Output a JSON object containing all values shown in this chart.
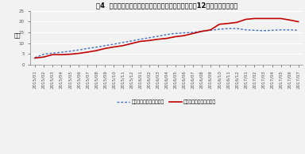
{
  "title": "図4  リサイクル中業種における月別出店数･退店数の12ヶ月移動平均推移",
  "ylabel": "店数",
  "ylim": [
    0,
    25
  ],
  "yticks": [
    0,
    5,
    10,
    15,
    20,
    25
  ],
  "labels": [
    "2015/01",
    "2015/02",
    "2015/03",
    "2015/04",
    "2015/05",
    "2015/06",
    "2015/07",
    "2015/08",
    "2015/09",
    "2015/10",
    "2015/11",
    "2015/12",
    "2016/01",
    "2016/02",
    "2016/03",
    "2016/04",
    "2016/05",
    "2016/06",
    "2016/07",
    "2016/08",
    "2016/09",
    "2016/10",
    "2016/11",
    "2016/12",
    "2017/01",
    "2017/02",
    "2017/03",
    "2017/04",
    "2017/05",
    "2017/06",
    "2017/07"
  ],
  "open_stores": [
    3.2,
    4.8,
    5.3,
    5.7,
    6.2,
    6.8,
    7.5,
    8.1,
    8.8,
    9.5,
    10.3,
    11.0,
    11.8,
    12.5,
    13.2,
    14.0,
    14.5,
    14.8,
    15.0,
    15.5,
    16.0,
    16.5,
    16.8,
    16.8,
    16.2,
    16.0,
    15.8,
    16.0,
    16.2,
    16.2,
    16.0
  ],
  "close_stores": [
    3.0,
    3.5,
    4.6,
    4.6,
    4.8,
    5.2,
    5.8,
    6.5,
    7.5,
    8.2,
    8.8,
    9.8,
    10.8,
    11.2,
    11.8,
    12.2,
    13.0,
    13.5,
    14.5,
    15.5,
    16.2,
    18.8,
    19.2,
    19.7,
    21.1,
    21.5,
    21.5,
    21.5,
    21.5,
    20.8,
    20.0
  ],
  "open_color": "#4472C4",
  "close_color": "#C00000",
  "legend_open": "リサイクル中業種出店数",
  "legend_close": "リサイクル中業種退店数",
  "bg_color": "#F2F2F2",
  "plot_bg": "#F2F2F2",
  "grid_color": "#FFFFFF",
  "title_fontsize": 6.0,
  "tick_fontsize": 4.0,
  "ylabel_fontsize": 5.0,
  "legend_fontsize": 4.5
}
